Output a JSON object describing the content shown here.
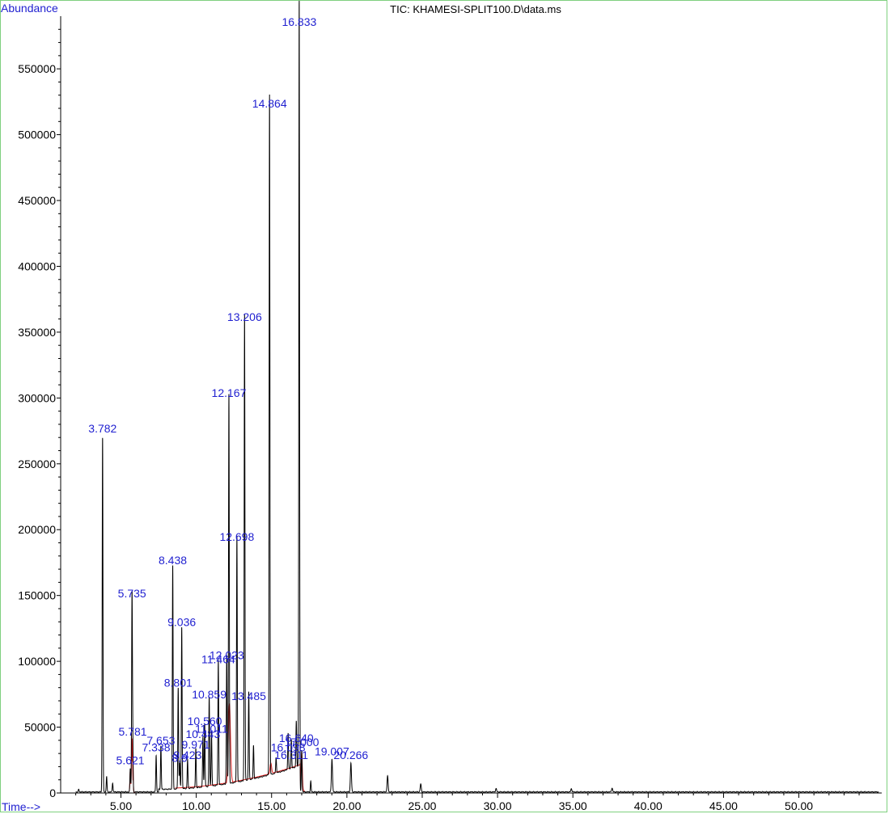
{
  "chart_data": {
    "type": "line",
    "title": "TIC: KHAMESI-SPLIT100.D\\data.ms",
    "ylabel": "Abundance",
    "xlabel": "Time-->",
    "xlim": [
      1.0,
      55.5
    ],
    "ylim": [
      0,
      590000
    ],
    "x_ticks": [
      "5.00",
      "10.00",
      "15.00",
      "20.00",
      "25.00",
      "30.00",
      "35.00",
      "40.00",
      "45.00",
      "50.00"
    ],
    "y_ticks": [
      "0",
      "50000",
      "100000",
      "150000",
      "200000",
      "250000",
      "300000",
      "350000",
      "400000",
      "450000",
      "500000",
      "550000"
    ],
    "grid": false,
    "colors": {
      "trace": "#000000",
      "baseline": "#e02020",
      "labels": "#1f1fd0",
      "frame": "#7fd07f"
    },
    "peaks": [
      {
        "label": "3.782",
        "rt": 3.782,
        "height": 270000
      },
      {
        "label": "5.621",
        "rt": 5.621,
        "height": 18000
      },
      {
        "label": "5.735",
        "rt": 5.735,
        "height": 145000
      },
      {
        "label": "5.781",
        "rt": 5.781,
        "height": 40000
      },
      {
        "label": "7.338",
        "rt": 7.338,
        "height": 28000
      },
      {
        "label": "7.653",
        "rt": 7.653,
        "height": 33000
      },
      {
        "label": "8.438",
        "rt": 8.438,
        "height": 170000
      },
      {
        "label": "8.801",
        "rt": 8.801,
        "height": 77000
      },
      {
        "label": "8.9",
        "rt": 8.9,
        "height": 20000
      },
      {
        "label": "9.036",
        "rt": 9.036,
        "height": 123000
      },
      {
        "label": "9.423",
        "rt": 9.423,
        "height": 22000
      },
      {
        "label": "9.971",
        "rt": 9.971,
        "height": 30000
      },
      {
        "label": "10.443",
        "rt": 10.443,
        "height": 38000
      },
      {
        "label": "10.560",
        "rt": 10.56,
        "height": 48000
      },
      {
        "label": "10.859",
        "rt": 10.859,
        "height": 68000
      },
      {
        "label": "11.011",
        "rt": 11.011,
        "height": 42000
      },
      {
        "label": "11.464",
        "rt": 11.464,
        "height": 95000
      },
      {
        "label": "12.023",
        "rt": 12.023,
        "height": 98000
      },
      {
        "label": "12.167",
        "rt": 12.167,
        "height": 297000
      },
      {
        "label": "12.698",
        "rt": 12.698,
        "height": 188000
      },
      {
        "label": "13.206",
        "rt": 13.206,
        "height": 355000
      },
      {
        "label": "13.485",
        "rt": 13.485,
        "height": 67000
      },
      {
        "label": "14.864",
        "rt": 14.864,
        "height": 517000
      },
      {
        "label": "16.098",
        "rt": 16.098,
        "height": 28000
      },
      {
        "label": "16.311",
        "rt": 16.311,
        "height": 22000
      },
      {
        "label": "16.640",
        "rt": 16.64,
        "height": 35000
      },
      {
        "label": "16.833",
        "rt": 16.833,
        "height": 583000
      },
      {
        "label": "17.000",
        "rt": 17.0,
        "height": 32000
      },
      {
        "label": "19.007",
        "rt": 19.007,
        "height": 25000
      },
      {
        "label": "20.266",
        "rt": 20.266,
        "height": 22000
      }
    ],
    "minor_peaks": [
      {
        "rt": 4.05,
        "height": 12000
      },
      {
        "rt": 4.45,
        "height": 7000
      },
      {
        "rt": 2.2,
        "height": 2000
      },
      {
        "rt": 13.8,
        "height": 25000
      },
      {
        "rt": 15.3,
        "height": 12000
      },
      {
        "rt": 17.6,
        "height": 8000
      },
      {
        "rt": 22.7,
        "height": 12000
      },
      {
        "rt": 24.9,
        "height": 6000
      },
      {
        "rt": 29.9,
        "height": 2500
      },
      {
        "rt": 34.9,
        "height": 2500
      },
      {
        "rt": 37.6,
        "height": 3000
      }
    ]
  }
}
